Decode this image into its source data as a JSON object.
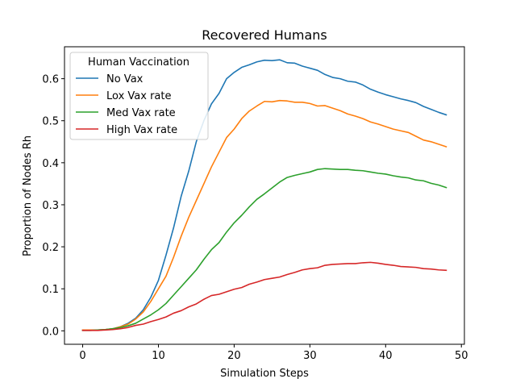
{
  "chart_data": {
    "type": "line",
    "title": "Recovered Humans",
    "xlabel": "Simulation Steps",
    "ylabel": "Proportion of Nodes Rh",
    "xlim": [
      -2.4,
      50.4
    ],
    "ylim": [
      -0.032,
      0.676
    ],
    "xticks": [
      0,
      10,
      20,
      30,
      40,
      50
    ],
    "yticks": [
      0.0,
      0.1,
      0.2,
      0.3,
      0.4,
      0.5,
      0.6
    ],
    "grid": false,
    "legend": {
      "title": "Human Vaccination",
      "placement": "top-left"
    },
    "x": [
      0,
      1,
      2,
      3,
      4,
      5,
      6,
      7,
      8,
      9,
      10,
      11,
      12,
      13,
      14,
      15,
      16,
      17,
      18,
      19,
      20,
      21,
      22,
      23,
      24,
      25,
      26,
      27,
      28,
      29,
      30,
      31,
      32,
      33,
      34,
      35,
      36,
      37,
      38,
      39,
      40,
      41,
      42,
      43,
      44,
      45,
      46,
      47,
      48
    ],
    "series": [
      {
        "name": "No Vax",
        "color": "#1f77b4",
        "values": [
          0.002,
          0.002,
          0.002,
          0.003,
          0.005,
          0.01,
          0.018,
          0.03,
          0.05,
          0.08,
          0.12,
          0.18,
          0.245,
          0.32,
          0.38,
          0.45,
          0.5,
          0.54,
          0.565,
          0.6,
          0.615,
          0.627,
          0.633,
          0.64,
          0.644,
          0.643,
          0.645,
          0.638,
          0.637,
          0.63,
          0.625,
          0.62,
          0.61,
          0.603,
          0.6,
          0.594,
          0.592,
          0.585,
          0.575,
          0.568,
          0.562,
          0.557,
          0.552,
          0.548,
          0.543,
          0.534,
          0.527,
          0.52,
          0.514
        ]
      },
      {
        "name": "Lox Vax rate",
        "color": "#ff7f0e",
        "values": [
          0.002,
          0.002,
          0.002,
          0.003,
          0.005,
          0.01,
          0.016,
          0.028,
          0.045,
          0.07,
          0.1,
          0.13,
          0.175,
          0.225,
          0.27,
          0.31,
          0.35,
          0.39,
          0.425,
          0.46,
          0.48,
          0.505,
          0.523,
          0.535,
          0.546,
          0.545,
          0.548,
          0.547,
          0.544,
          0.544,
          0.541,
          0.535,
          0.536,
          0.53,
          0.524,
          0.516,
          0.511,
          0.505,
          0.497,
          0.492,
          0.486,
          0.48,
          0.476,
          0.472,
          0.463,
          0.454,
          0.45,
          0.444,
          0.438
        ]
      },
      {
        "name": "Med Vax rate",
        "color": "#2ca02c",
        "values": [
          0.001,
          0.001,
          0.002,
          0.003,
          0.005,
          0.008,
          0.012,
          0.018,
          0.028,
          0.038,
          0.05,
          0.065,
          0.085,
          0.105,
          0.125,
          0.145,
          0.17,
          0.193,
          0.21,
          0.235,
          0.257,
          0.275,
          0.295,
          0.313,
          0.326,
          0.34,
          0.354,
          0.365,
          0.37,
          0.374,
          0.378,
          0.384,
          0.386,
          0.385,
          0.384,
          0.384,
          0.382,
          0.381,
          0.378,
          0.375,
          0.373,
          0.369,
          0.366,
          0.364,
          0.359,
          0.357,
          0.351,
          0.347,
          0.341
        ]
      },
      {
        "name": "High Vax rate",
        "color": "#d62728",
        "values": [
          0.001,
          0.001,
          0.001,
          0.002,
          0.003,
          0.005,
          0.008,
          0.013,
          0.016,
          0.022,
          0.027,
          0.033,
          0.042,
          0.048,
          0.057,
          0.064,
          0.075,
          0.084,
          0.087,
          0.093,
          0.099,
          0.103,
          0.111,
          0.116,
          0.122,
          0.125,
          0.128,
          0.134,
          0.139,
          0.145,
          0.148,
          0.15,
          0.156,
          0.158,
          0.159,
          0.16,
          0.16,
          0.162,
          0.163,
          0.161,
          0.158,
          0.156,
          0.153,
          0.152,
          0.151,
          0.148,
          0.147,
          0.145,
          0.144
        ]
      }
    ]
  }
}
